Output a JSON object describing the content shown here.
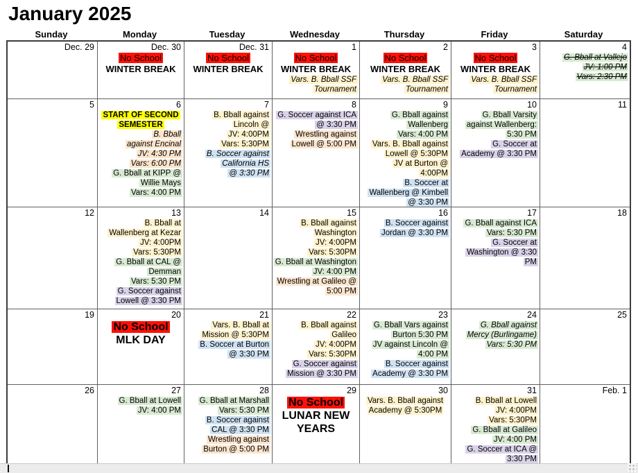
{
  "title": "January 2025",
  "day_headers": [
    "Sunday",
    "Monday",
    "Tuesday",
    "Wednesday",
    "Thursday",
    "Friday",
    "Saturday"
  ],
  "colors": {
    "red": "#ff0f05",
    "yellow": "#ffff00",
    "cream": "#fff2cc",
    "green": "#d9ead3",
    "blue": "#cfe2f3",
    "purple": "#d9d2e9",
    "peach": "#fce5cd"
  },
  "footer": {
    "grip_icon": "resize-grip",
    "text_cursor": "|"
  },
  "calendar": {
    "weeks": [
      {
        "days": [
          {
            "date": "Dec. 29",
            "events": []
          },
          {
            "date": "Dec. 30",
            "events": [
              {
                "text": "No School",
                "highlight": "red",
                "align": "center",
                "size": "medium"
              },
              {
                "text": "WINTER BREAK",
                "bold": true,
                "align": "center",
                "size": "medium"
              }
            ]
          },
          {
            "date": "Dec. 31",
            "events": [
              {
                "text": "No School",
                "highlight": "red",
                "align": "center",
                "size": "medium"
              },
              {
                "text": "WINTER BREAK",
                "bold": true,
                "align": "center",
                "size": "medium"
              }
            ]
          },
          {
            "date": "1",
            "events": [
              {
                "text": "No School",
                "highlight": "red",
                "align": "center",
                "size": "medium"
              },
              {
                "text": "WINTER BREAK",
                "bold": true,
                "align": "center",
                "size": "medium"
              },
              {
                "text": "Vars. B. Bball SSF\nTournament",
                "highlight": "cream",
                "italic": true
              }
            ]
          },
          {
            "date": "2",
            "events": [
              {
                "text": "No School",
                "highlight": "red",
                "align": "center",
                "size": "medium"
              },
              {
                "text": "WINTER BREAK",
                "bold": true,
                "align": "center",
                "size": "medium"
              },
              {
                "text": "Vars. B. Bball SSF\nTournament",
                "highlight": "cream",
                "italic": true
              }
            ]
          },
          {
            "date": "3",
            "events": [
              {
                "text": "No School",
                "highlight": "red",
                "align": "center",
                "size": "medium"
              },
              {
                "text": "WINTER BREAK",
                "bold": true,
                "align": "center",
                "size": "medium"
              },
              {
                "text": "Vars. B. Bball SSF\nTournament",
                "highlight": "cream",
                "italic": true
              }
            ]
          },
          {
            "date": "4",
            "events": [
              {
                "text": "G. Bball at Vallejo\nJV: 1:00 PM\nVars: 2:30 PM",
                "highlight": "green",
                "italic": true,
                "strikethrough": true
              }
            ]
          }
        ]
      },
      {
        "days": [
          {
            "date": "5",
            "events": []
          },
          {
            "date": "6",
            "events": [
              {
                "text": "START OF SECOND\nSEMESTER",
                "highlight": "yellow",
                "bold": true,
                "align": "center"
              },
              {
                "text": "B. Bball\nagainst Encinal\nJV: 4:30 PM\nVars: 6:00 PM",
                "highlight": "peach",
                "italic": true
              },
              {
                "text": "G. Bball at KIPP @\nWillie Mays\nVars: 4:00 PM",
                "highlight": "green"
              }
            ]
          },
          {
            "date": "7",
            "events": [
              {
                "text": "B. Bball against\nLincoln @\nJV: 4:00PM\nVars: 5:30PM",
                "highlight": "cream"
              },
              {
                "text": "B. Soccer against\nCalifornia HS\n@ 3:30 PM",
                "highlight": "blue",
                "italic": true
              }
            ]
          },
          {
            "date": "8",
            "events": [
              {
                "text": "G. Soccer against ICA\n@ 3:30 PM",
                "highlight": "purple"
              },
              {
                "text": "Wrestling against\nLowell @ 5:00 PM",
                "highlight": "peach"
              }
            ]
          },
          {
            "date": "9",
            "events": [
              {
                "text": "G. Bball against\nWallenberg\nVars: 4:00 PM",
                "highlight": "green"
              },
              {
                "text": "Vars. B. Bball against\nLowell @ 5:30PM\nJV at Burton @\n4:00PM",
                "highlight": "cream"
              },
              {
                "text": "B. Soccer at\nWallenberg @ Kimbell\n@ 3:30 PM",
                "highlight": "blue"
              }
            ]
          },
          {
            "date": "10",
            "events": [
              {
                "text": "G. Bball Varsity\nagainst Wallenberg:\n5:30 PM",
                "highlight": "green"
              },
              {
                "text": "G. Soccer at\nAcademy @ 3:30 PM",
                "highlight": "purple"
              }
            ]
          },
          {
            "date": "11",
            "events": []
          }
        ]
      },
      {
        "days": [
          {
            "date": "12",
            "events": []
          },
          {
            "date": "13",
            "events": [
              {
                "text": "B. Bball at\nWallenberg at Kezar\nJV: 4:00PM\nVars: 5:30PM",
                "highlight": "cream"
              },
              {
                "text": "G. Bball at CAL @\nDemman\nVars: 5:30 PM",
                "highlight": "green"
              },
              {
                "text": "G. Soccer against\nLowell @ 3:30 PM",
                "highlight": "purple"
              }
            ]
          },
          {
            "date": "14",
            "events": []
          },
          {
            "date": "15",
            "events": [
              {
                "text": "B. Bball against\nWashington\nJV: 4:00PM\nVars: 5:30PM",
                "highlight": "cream"
              },
              {
                "text": "G. Bball at Washington\nJV: 4:00 PM",
                "highlight": "green"
              },
              {
                "text": "Wrestling at Galileo @\n5:00 PM",
                "highlight": "peach"
              }
            ]
          },
          {
            "date": "16",
            "events": [
              {
                "text": "B. Soccer against\nJordan @ 3:30 PM",
                "highlight": "blue"
              }
            ]
          },
          {
            "date": "17",
            "events": [
              {
                "text": "G. Bball against ICA\nVars: 5:30 PM",
                "highlight": "green"
              },
              {
                "text": "G. Soccer at\nWashington @ 3:30\nPM",
                "highlight": "purple"
              }
            ]
          },
          {
            "date": "18",
            "events": []
          }
        ]
      },
      {
        "days": [
          {
            "date": "19",
            "events": []
          },
          {
            "date": "20",
            "events": [
              {
                "text": "No School",
                "highlight": "red",
                "bold": true,
                "align": "center",
                "size": "large"
              },
              {
                "text": "MLK DAY",
                "bold": true,
                "align": "center",
                "size": "large"
              }
            ]
          },
          {
            "date": "21",
            "events": [
              {
                "text": "Vars. B. Bball at\nMission @ 5:30PM",
                "highlight": "cream"
              },
              {
                "text": "B. Soccer at Burton\n@ 3:30 PM",
                "highlight": "blue"
              }
            ]
          },
          {
            "date": "22",
            "events": [
              {
                "text": "B. Bball against\nGalileo\nJV: 4:00PM\nVars: 5:30PM",
                "highlight": "cream"
              },
              {
                "text": "G. Soccer against\nMission @ 3:30 PM",
                "highlight": "purple"
              }
            ]
          },
          {
            "date": "23",
            "events": [
              {
                "text": "G. Bball Vars against\nBurton 5:30 PM\nJV against Lincoln @\n4:00 PM",
                "highlight": "green"
              },
              {
                "text": "B. Soccer against\nAcademy @ 3:30 PM",
                "highlight": "blue"
              }
            ]
          },
          {
            "date": "24",
            "events": [
              {
                "text": "G. Bball against\nMercy (Burlingame)\nVars: 5:30 PM",
                "highlight": "green",
                "italic": true
              }
            ]
          },
          {
            "date": "25",
            "events": []
          }
        ]
      },
      {
        "days": [
          {
            "date": "26",
            "events": []
          },
          {
            "date": "27",
            "events": [
              {
                "text": "G. Bball at Lowell\nJV: 4:00 PM",
                "highlight": "green"
              }
            ]
          },
          {
            "date": "28",
            "events": [
              {
                "text": "G. Bball at Marshall\nVars: 5:30 PM",
                "highlight": "green"
              },
              {
                "text": "B. Soccer against\nCAL @ 3:30 PM",
                "highlight": "blue"
              },
              {
                "text": "Wrestling against\nBurton @ 5:00 PM",
                "highlight": "peach"
              }
            ]
          },
          {
            "date": "29",
            "events": [
              {
                "text": "No School",
                "highlight": "red",
                "bold": true,
                "align": "center",
                "size": "large"
              },
              {
                "text": "LUNAR NEW\nYEARS",
                "bold": true,
                "align": "center",
                "size": "large"
              }
            ]
          },
          {
            "date": "30",
            "events": [
              {
                "text": "Vars. B. Bball against\nAcademy @ 5:30PM",
                "highlight": "cream",
                "align": "center"
              }
            ]
          },
          {
            "date": "31",
            "events": [
              {
                "text": "B. Bball at Lowell\nJV: 4:00PM\nVars: 5:30PM",
                "highlight": "cream"
              },
              {
                "text": "G. Bball at Galileo\nJV: 4:00 PM",
                "highlight": "green"
              },
              {
                "text": "G. Soccer at ICA @\n3:30 PM",
                "highlight": "purple"
              }
            ]
          },
          {
            "date": "Feb. 1",
            "events": []
          }
        ]
      }
    ]
  }
}
